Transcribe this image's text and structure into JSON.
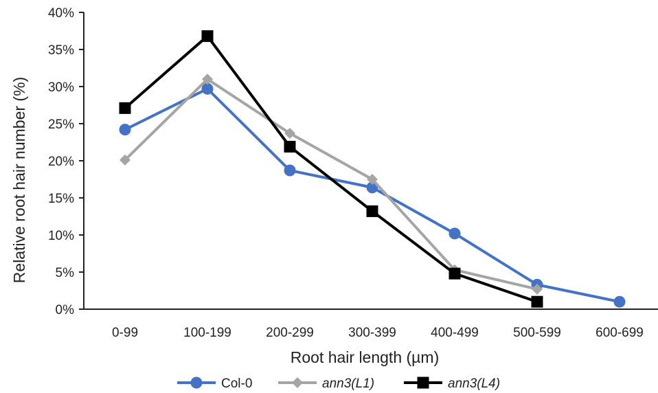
{
  "chart_data": {
    "type": "line",
    "title": "",
    "xlabel": "Root hair length (µm)",
    "ylabel": "Relative root hair number (%)",
    "ylim": [
      0,
      40
    ],
    "yticks": [
      0,
      5,
      10,
      15,
      20,
      25,
      30,
      35,
      40
    ],
    "ytick_labels": [
      "0%",
      "5%",
      "10%",
      "15%",
      "20%",
      "25%",
      "30%",
      "35%",
      "40%"
    ],
    "categories": [
      "0-99",
      "100-199",
      "200-299",
      "300-399",
      "400-499",
      "500-599",
      "600-699"
    ],
    "grid": false,
    "legend_position": "bottom",
    "series": [
      {
        "name": "Col-0",
        "italic": false,
        "color": "#4472C4",
        "marker": "circle",
        "values": [
          24.2,
          29.7,
          18.7,
          16.4,
          10.2,
          3.3,
          1.0
        ]
      },
      {
        "name": "ann3(L1)",
        "italic": true,
        "color": "#A5A5A5",
        "marker": "diamond",
        "values": [
          20.1,
          31.0,
          23.7,
          17.5,
          5.3,
          2.7,
          null
        ]
      },
      {
        "name": "ann3(L4)",
        "italic": true,
        "color": "#000000",
        "marker": "square",
        "values": [
          27.1,
          36.8,
          21.9,
          13.2,
          4.8,
          1.0,
          null
        ]
      }
    ]
  }
}
